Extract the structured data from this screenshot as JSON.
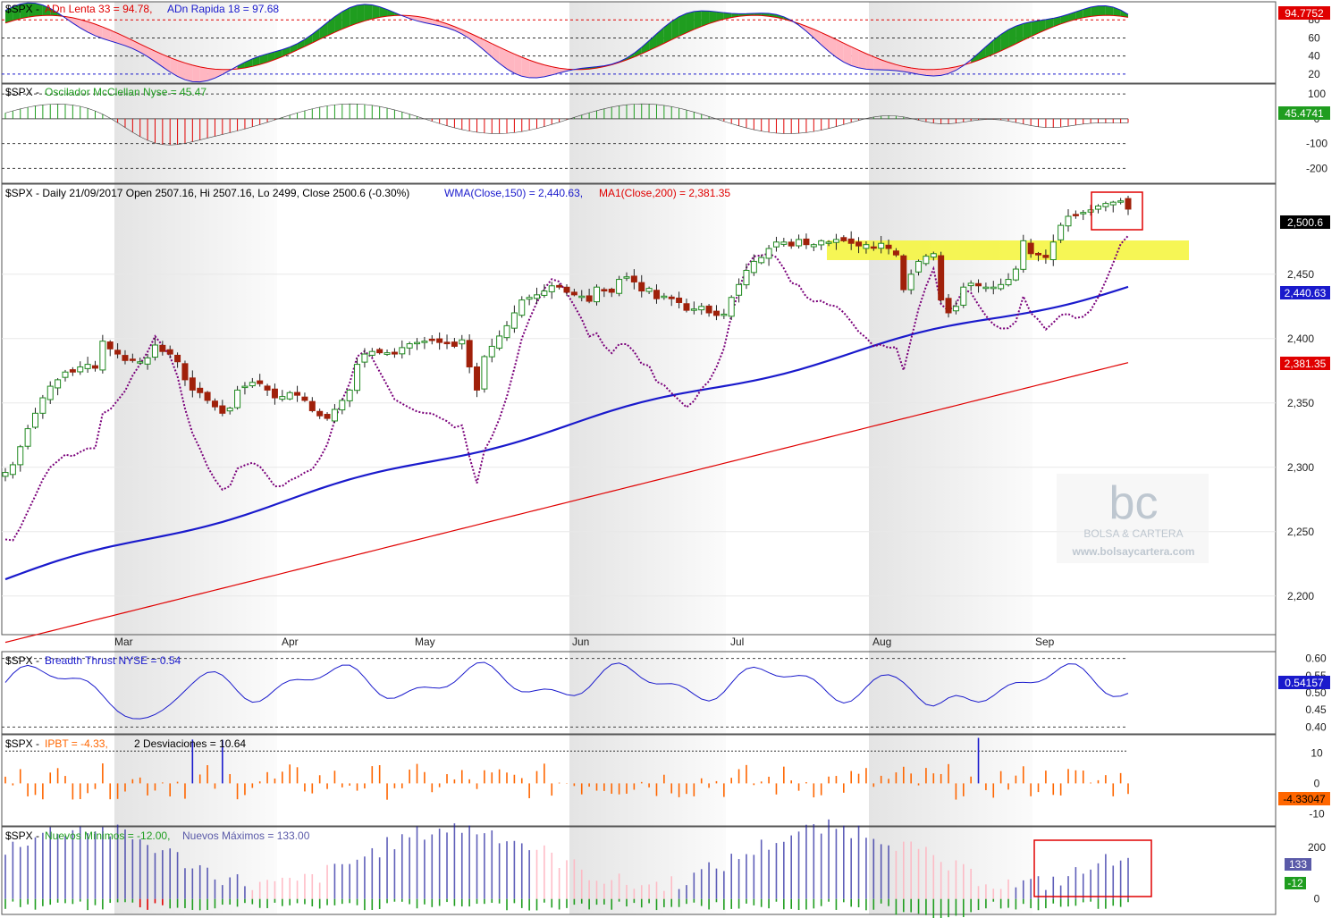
{
  "months": [
    "Mar",
    "Apr",
    "May",
    "Jun",
    "Jul",
    "Aug",
    "Sep"
  ],
  "watermark": {
    "logo": "bc",
    "brand": "BOLSA & CARTERA",
    "url": "www.bolsaycartera.com"
  },
  "colors": {
    "green": "#1f9d1f",
    "red": "#e00000",
    "blue": "#1a1acc",
    "purple": "#7a007a",
    "orange": "#ff6600",
    "price_up": "#ffffff",
    "price_down": "#a0200a",
    "highlight": "#f5f542",
    "pink": "#ffb6c1",
    "navy": "#1c1c9c"
  },
  "panels": {
    "adn": {
      "title_symbol": "$SPX - ",
      "title_part1": "ADn Lenta 33 = 94.78, ",
      "title_part2": "ADn Rapida 18 = 97.68",
      "ticks": [
        "80",
        "60",
        "40",
        "20"
      ],
      "value_badge": "94.7752"
    },
    "mcclellan": {
      "title_symbol": "$SPX - ",
      "title_part1": "Oscilador McClellan Nyse = 45.47",
      "ticks": [
        "100",
        "0",
        "-100",
        "-200"
      ],
      "value_badge": "45.4741"
    },
    "price": {
      "title_part1": "$SPX - Daily 21/09/2017 Open 2507.16, Hi 2507.16, Lo 2499, Close 2500.6 (-0.30%) ",
      "title_part2": "WMA(Close,150) = 2,440.63, ",
      "title_part3": "MA1(Close,200) = 2,381.35",
      "ticks": [
        "2,450",
        "2,400",
        "2,350",
        "2,300",
        "2,250",
        "2,200"
      ],
      "badge_close": "2,500.6",
      "badge_wma": "2,440.63",
      "badge_ma": "2,381.35"
    },
    "breadth": {
      "title_symbol": "$SPX - ",
      "title_part1": "Breadth Thrust NYSE = 0.54",
      "ticks": [
        "0.60",
        "0.55",
        "0.50",
        "0.45",
        "0.40"
      ],
      "value_badge": "0.54157"
    },
    "ipbt": {
      "title_symbol": "$SPX - ",
      "title_part1": "IPBT = -4.33,",
      "title_part2": "2 Desviaciones = 10.64",
      "ticks": [
        "10",
        "0",
        "-10"
      ],
      "value_badge": "-4.33047"
    },
    "nuevos": {
      "title_symbol": "$SPX - ",
      "title_part1": "Nuevos Mínimos = -12.00, ",
      "title_part2": "Nuevos Máximos = 133.00",
      "ticks": [
        "200",
        "0"
      ],
      "badge_max": "133",
      "badge_min": "-12"
    }
  },
  "chart_data": {
    "type": "line",
    "instrument": "$SPX",
    "x_labels": [
      "Mar",
      "Apr",
      "May",
      "Jun",
      "Jul",
      "Aug",
      "Sep"
    ],
    "price": {
      "open": 2507.16,
      "high": 2507.16,
      "low": 2499,
      "close": 2500.6,
      "change_pct": -0.3,
      "date": "21/09/2017",
      "ylim": [
        2170,
        2520
      ],
      "close_series": [
        2296,
        2302,
        2316,
        2330,
        2342,
        2354,
        2363,
        2368,
        2374,
        2374,
        2378,
        2380,
        2377,
        2398,
        2392,
        2388,
        2383,
        2383,
        2382,
        2385,
        2395,
        2390,
        2388,
        2382,
        2368,
        2360,
        2358,
        2352,
        2347,
        2342,
        2346,
        2360,
        2363,
        2366,
        2365,
        2360,
        2354,
        2355,
        2358,
        2356,
        2352,
        2344,
        2340,
        2338,
        2345,
        2352,
        2360,
        2380,
        2388,
        2390,
        2389,
        2389,
        2388,
        2393,
        2396,
        2397,
        2398,
        2399,
        2397,
        2396,
        2394,
        2399,
        2378,
        2360,
        2386,
        2394,
        2402,
        2410,
        2420,
        2430,
        2432,
        2434,
        2437,
        2441,
        2440,
        2436,
        2434,
        2433,
        2429,
        2440,
        2437,
        2436,
        2446,
        2448,
        2444,
        2437,
        2439,
        2431,
        2433,
        2431,
        2428,
        2422,
        2423,
        2425,
        2420,
        2418,
        2419,
        2432,
        2442,
        2453,
        2460,
        2463,
        2470,
        2475,
        2475,
        2472,
        2477,
        2473,
        2473,
        2476,
        2475,
        2477,
        2476,
        2474,
        2472,
        2473,
        2471,
        2474,
        2470,
        2465,
        2438,
        2450,
        2460,
        2464,
        2466,
        2430,
        2420,
        2425,
        2440,
        2443,
        2441,
        2440,
        2440,
        2442,
        2446,
        2454,
        2476,
        2466,
        2465,
        2463,
        2475,
        2488,
        2495,
        2496,
        2498,
        2500,
        2503,
        2505,
        2506,
        2507,
        2500.6
      ],
      "wma150_end": 2440.63,
      "ma200_end": 2381.35,
      "highlight_zone": [
        2468,
        2484
      ]
    },
    "adn": {
      "ylim": [
        10,
        100
      ],
      "lenta_33": 94.78,
      "rapida_18": 97.68
    },
    "mcclellan": {
      "ylim": [
        -260,
        140
      ],
      "value": 45.47
    },
    "breadth": {
      "ylim": [
        0.38,
        0.62
      ],
      "value": 0.54
    },
    "ipbt": {
      "ylim": [
        -14,
        16
      ],
      "value": -4.33,
      "two_std": 10.64
    },
    "nuevos": {
      "ylim": [
        -60,
        280
      ],
      "minimos": -12.0,
      "maximos": 133.0
    }
  }
}
